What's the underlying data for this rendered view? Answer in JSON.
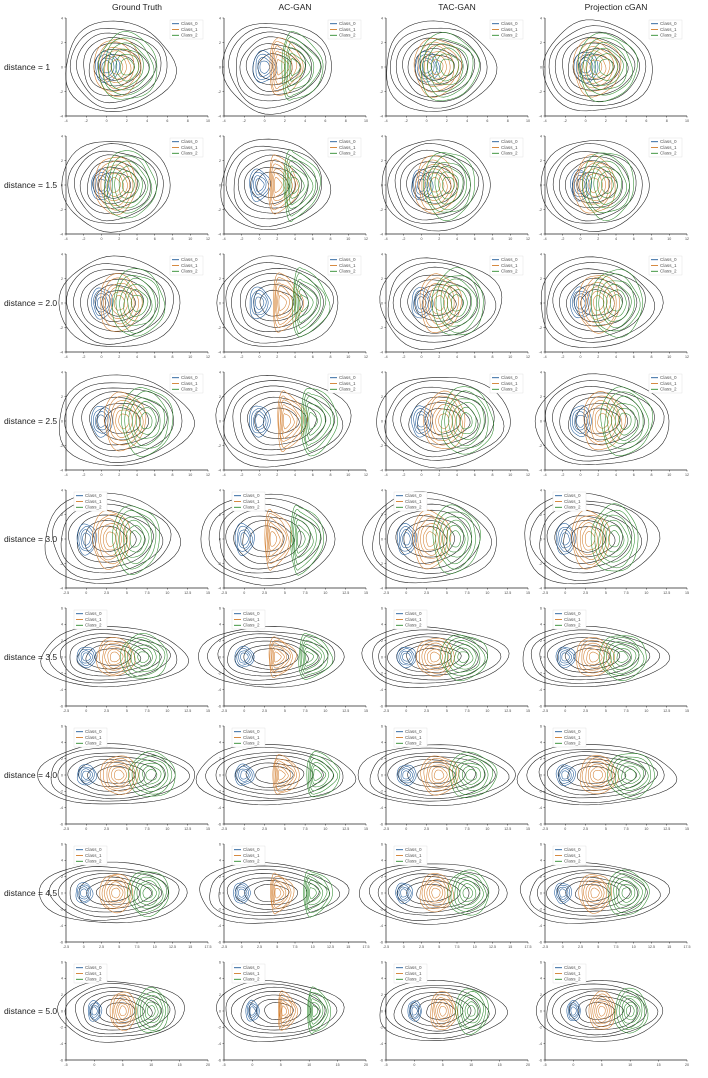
{
  "figure": {
    "columns": [
      "Ground Truth",
      "AC-GAN",
      "TAC-GAN",
      "Projection cGAN"
    ],
    "rows": [
      "distance = 1",
      "distance = 1.5",
      "distance = 2.0",
      "distance = 2.5",
      "distance = 3.0",
      "distance = 3.5",
      "distance = 4.0",
      "distance = 4.5",
      "distance = 5.0"
    ],
    "legend": [
      "Class_0",
      "Class_1",
      "Class_2"
    ],
    "colors": {
      "class_0": "#1f5a99",
      "class_1": "#d27d2d",
      "class_2": "#2e8b2e",
      "marginal": "#1a1a1a"
    }
  },
  "chart_data": {
    "type": "contour",
    "title": "",
    "xlabel": "",
    "ylabel": "",
    "grid": false,
    "legend_position": "top-right",
    "series": [
      "Class_0",
      "Class_1",
      "Class_2"
    ],
    "distances": [
      1,
      1.5,
      2.0,
      2.5,
      3.0,
      3.5,
      4.0,
      4.5,
      5.0
    ],
    "panels": [
      {
        "row": 0,
        "xlim": [
          -4,
          10
        ],
        "ylim": [
          -4,
          4
        ],
        "xticks": [
          -4,
          -2,
          0,
          2,
          4,
          6,
          8,
          10
        ],
        "yticks": [
          -4,
          -2,
          0,
          2,
          4
        ]
      },
      {
        "row": 1,
        "xlim": [
          -4,
          12
        ],
        "ylim": [
          -4,
          4
        ],
        "xticks": [
          -4,
          -2,
          0,
          2,
          4,
          6,
          8,
          10,
          12
        ],
        "yticks": [
          -4,
          -2,
          0,
          2,
          4
        ]
      },
      {
        "row": 2,
        "xlim": [
          -4,
          12
        ],
        "ylim": [
          -4,
          4
        ],
        "xticks": [
          -4,
          -2,
          0,
          2,
          4,
          6,
          8,
          10,
          12
        ],
        "yticks": [
          -4,
          -2,
          0,
          2,
          4
        ]
      },
      {
        "row": 3,
        "xlim": [
          -4,
          12
        ],
        "ylim": [
          -4,
          4
        ],
        "xticks": [
          -4,
          -2,
          0,
          2,
          4,
          6,
          8,
          10,
          12
        ],
        "yticks": [
          -4,
          -2,
          0,
          2,
          4
        ]
      },
      {
        "row": 4,
        "xlim": [
          -2.5,
          15
        ],
        "ylim": [
          -4,
          4
        ],
        "xticks": [
          -2.5,
          0.0,
          2.5,
          5.0,
          7.5,
          10.0,
          12.5,
          15.0
        ],
        "yticks": [
          -4,
          -2,
          0,
          2,
          4
        ]
      },
      {
        "row": 5,
        "xlim": [
          -2.5,
          15
        ],
        "ylim": [
          -6,
          6
        ],
        "xticks": [
          -2.5,
          0.0,
          2.5,
          5.0,
          7.5,
          10.0,
          12.5,
          15.0
        ],
        "yticks": [
          -6,
          -4,
          -2,
          0,
          2,
          4,
          6
        ]
      },
      {
        "row": 6,
        "xlim": [
          -2.5,
          15
        ],
        "ylim": [
          -6,
          6
        ],
        "xticks": [
          -2.5,
          0.0,
          2.5,
          5.0,
          7.5,
          10.0,
          12.5,
          15.0
        ],
        "yticks": [
          -6,
          -4,
          -2,
          0,
          2,
          4,
          6
        ]
      },
      {
        "row": 7,
        "xlim": [
          -2.5,
          17.5
        ],
        "ylim": [
          -6,
          6
        ],
        "xticks": [
          -2.5,
          0.0,
          2.5,
          5.0,
          7.5,
          10.0,
          12.5,
          15.0,
          17.5
        ],
        "yticks": [
          -6,
          -4,
          -2,
          0,
          2,
          4,
          6
        ]
      },
      {
        "row": 8,
        "xlim": [
          -5,
          20
        ],
        "ylim": [
          -6,
          6
        ],
        "xticks": [
          -5,
          0,
          5,
          10,
          15,
          20
        ],
        "yticks": [
          -6,
          -4,
          -2,
          0,
          2,
          4,
          6
        ]
      }
    ]
  }
}
